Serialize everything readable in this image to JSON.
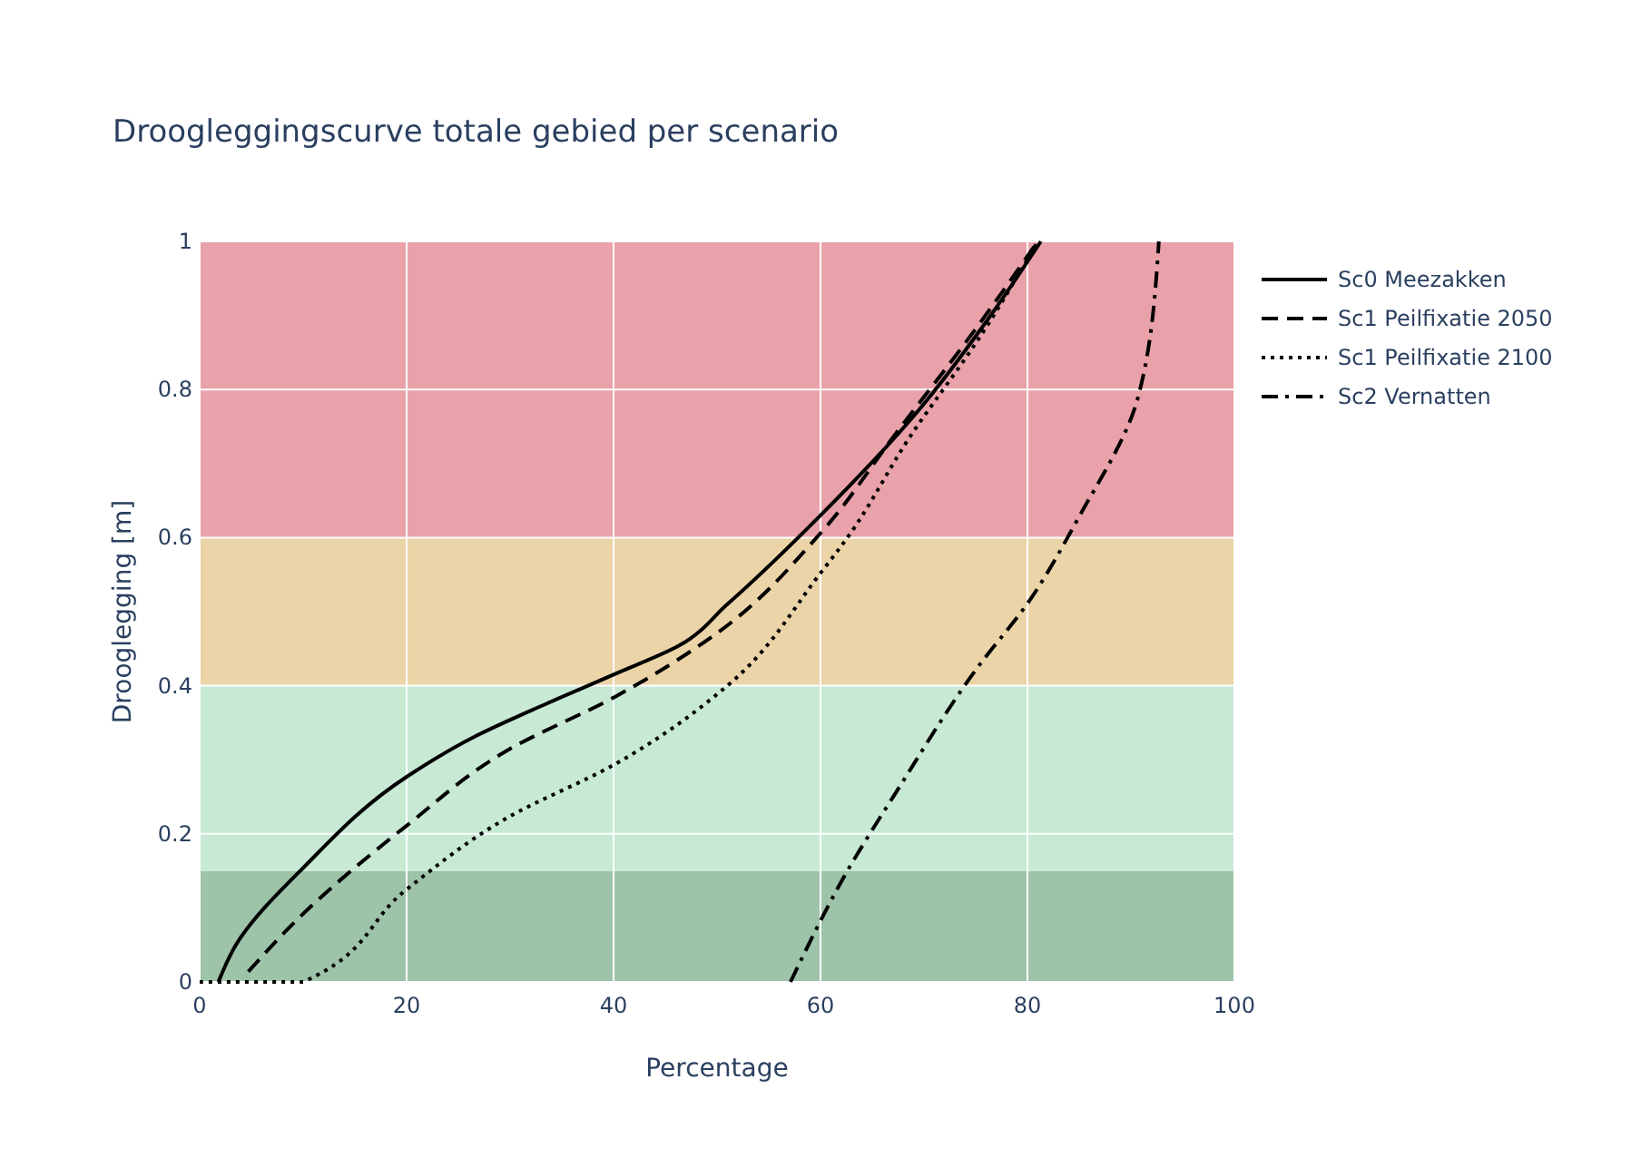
{
  "chart_data": {
    "type": "line",
    "title": "Droogleggingscurve totale gebied per scenario",
    "xlabel": "Percentage",
    "ylabel": "Drooglegging [m]",
    "xlim": [
      0,
      100
    ],
    "xticks": [
      0,
      20,
      40,
      60,
      80,
      100
    ],
    "ylim": [
      0,
      1
    ],
    "yticks": [
      0,
      0.2,
      0.4,
      0.6,
      0.8,
      1
    ],
    "grid": true,
    "legend": "right",
    "marker": "none",
    "bands": [
      {
        "axis": "y",
        "from": 0,
        "to": 0.15,
        "color": "#9dc3a9"
      },
      {
        "axis": "y",
        "from": 0.15,
        "to": 0.4,
        "color": "#c8e9d4"
      },
      {
        "axis": "y",
        "from": 0.4,
        "to": 0.6,
        "color": "#ebd4a8"
      },
      {
        "axis": "y",
        "from": 0.6,
        "to": 1,
        "color": "#e9a2a9"
      }
    ],
    "series": [
      {
        "name": "Sc0 Meezakken",
        "color": "#000000",
        "line_style": "solid",
        "x": [
          1.8,
          3.5,
          10,
          20,
          26.4,
          33.4,
          40,
          46.3,
          51,
          60,
          69.6,
          76.7,
          81.3
        ],
        "values": [
          0,
          0.05,
          0.154,
          0.277,
          0.33,
          0.375,
          0.415,
          0.454,
          0.51,
          0.63,
          0.774,
          0.905,
          1
        ]
      },
      {
        "name": "Sc1 Peilfixatie 2050",
        "color": "#000000",
        "line_style": "dashed",
        "x": [
          4.7,
          10,
          20,
          29.9,
          40,
          49.9,
          60,
          67.3,
          74.9,
          81
        ],
        "values": [
          0.014,
          0.092,
          0.211,
          0.314,
          0.384,
          0.47,
          0.606,
          0.741,
          0.88,
          1
        ]
      },
      {
        "name": "Sc1 Peilfixatie 2100",
        "color": "#000000",
        "line_style": "dotted",
        "x": [
          0,
          10,
          20,
          29.9,
          40,
          51,
          60,
          62.6,
          68.5,
          75.5,
          81
        ],
        "values": [
          0,
          0,
          0.125,
          0.223,
          0.293,
          0.4,
          0.552,
          0.6,
          0.733,
          0.873,
          1
        ]
      },
      {
        "name": "Sc2 Vernatten",
        "color": "#000000",
        "line_style": "dashdot",
        "x": [
          57.1,
          62.6,
          67.3,
          75.2,
          80,
          84.9,
          90.7,
          92.7
        ],
        "values": [
          0,
          0.15,
          0.256,
          0.425,
          0.511,
          0.626,
          0.79,
          1
        ]
      }
    ]
  }
}
